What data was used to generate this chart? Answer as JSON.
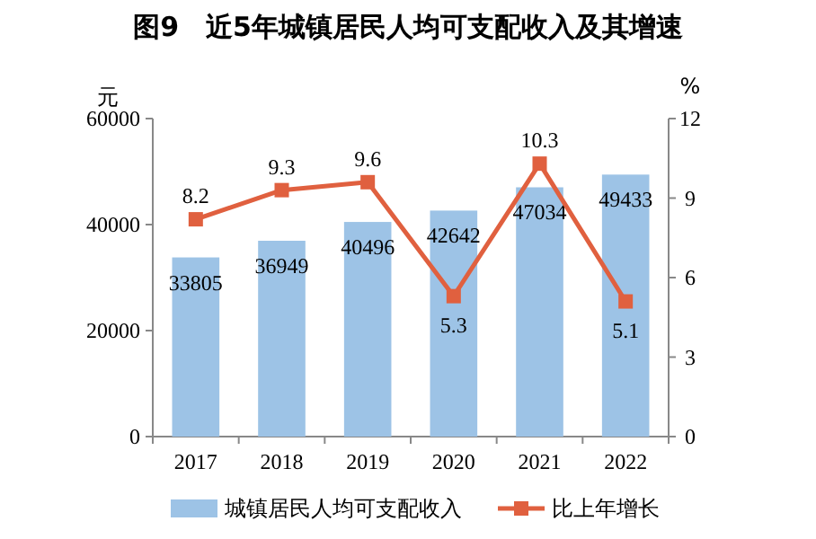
{
  "chart_data": {
    "type": "bar",
    "title": "图9　近5年城镇居民人均可支配收入及其增速",
    "categories": [
      "2017",
      "2018",
      "2019",
      "2020",
      "2021",
      "2022"
    ],
    "series": [
      {
        "name": "城镇居民人均可支配收入",
        "color": "#9dc3e6",
        "values": [
          33805,
          36949,
          40496,
          42642,
          47034,
          49433
        ]
      },
      {
        "name": "比上年增长",
        "type": "line",
        "axis": "y2",
        "color": "#e0603f",
        "marker": "square",
        "values": [
          8.2,
          9.3,
          9.6,
          5.3,
          10.3,
          5.1
        ]
      }
    ],
    "ylabel": "元",
    "y2label": "%",
    "ylim": [
      0,
      60000
    ],
    "yticks": [
      0,
      20000,
      40000,
      60000
    ],
    "y2lim": [
      0,
      12
    ],
    "y2ticks": [
      0,
      3,
      6,
      9,
      12
    ],
    "data_labels": true,
    "legend": "bottom",
    "grid": false
  }
}
